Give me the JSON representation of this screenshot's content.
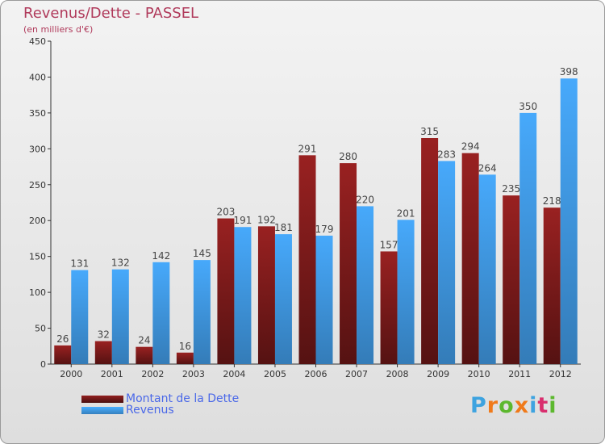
{
  "chart_data": {
    "type": "bar",
    "title": "Revenus/Dette - PASSEL",
    "subtitle": "(en milliers d'€)",
    "categories": [
      "2000",
      "2001",
      "2002",
      "2003",
      "2004",
      "2005",
      "2006",
      "2007",
      "2008",
      "2009",
      "2010",
      "2011",
      "2012"
    ],
    "series": [
      {
        "name": "Montant de la Dette",
        "color": "#7a1a1a",
        "values": [
          26,
          32,
          24,
          16,
          203,
          192,
          291,
          280,
          157,
          315,
          294,
          235,
          218
        ]
      },
      {
        "name": "Revenus",
        "color": "#3f97e0",
        "values": [
          131,
          132,
          142,
          145,
          191,
          181,
          179,
          220,
          201,
          283,
          264,
          350,
          398
        ]
      }
    ],
    "yticks": [
      0,
      50,
      100,
      150,
      200,
      250,
      300,
      350,
      400,
      450
    ],
    "ylim": [
      0,
      450
    ],
    "grid": false,
    "legend_position": "bottom-left"
  },
  "logo": {
    "text": "Proxiti",
    "colors": [
      "#3da3e0",
      "#f07a1a",
      "#5cb82e",
      "#f07a1a",
      "#3da3e0",
      "#d92e6e",
      "#5cb82e"
    ]
  }
}
